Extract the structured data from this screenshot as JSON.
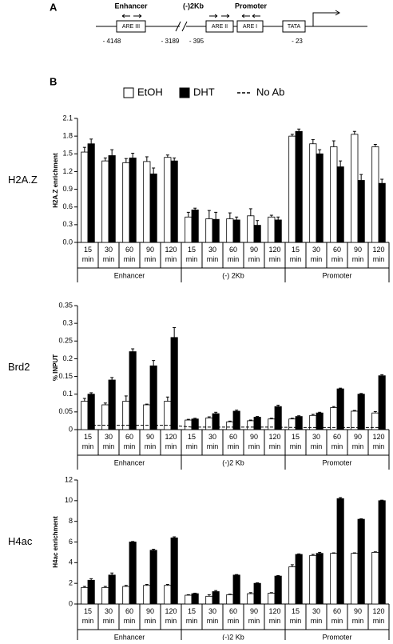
{
  "panel_a": {
    "label": "A",
    "regions": [
      "Enhancer",
      "(-)2Kb",
      "Promoter"
    ],
    "boxes": [
      "ARE III",
      "ARE II",
      "ARE I",
      "TATA"
    ],
    "positions": [
      "- 4148",
      "- 3189",
      "- 395",
      "- 23"
    ]
  },
  "panel_b": {
    "label": "B"
  },
  "legend": [
    {
      "name": "EtOH",
      "color": "#ffffff"
    },
    {
      "name": "DHT",
      "color": "#000000"
    },
    {
      "name": "No Ab",
      "style": "dashed"
    }
  ],
  "chart_data": [
    {
      "type": "bar",
      "row_label": "H2A.Z",
      "ylabel": "H2A.Z enrichment",
      "categories": [
        "15 min",
        "30 min",
        "60 min",
        "90 min",
        "120 min",
        "15 min",
        "30 min",
        "60 min",
        "90 min",
        "120 min",
        "15 min",
        "30 min",
        "60 min",
        "90 min",
        "120 min"
      ],
      "groups": [
        "Enhancer",
        "(-) 2Kb",
        "Promoter"
      ],
      "ylim": [
        0,
        2.1
      ],
      "yticks": [
        {
          "value": 0,
          "label": "0.0"
        },
        0.3,
        0.6,
        0.9,
        1.2,
        1.5,
        1.8,
        2.1
      ],
      "series": [
        {
          "color": "#ffffff",
          "values": [
            1.53,
            1.38,
            1.35,
            1.37,
            1.44,
            0.43,
            0.4,
            0.4,
            0.45,
            0.43,
            1.8,
            1.67,
            1.62,
            1.83,
            1.62
          ],
          "errors": [
            0.08,
            0.05,
            0.07,
            0.08,
            0.04,
            0.08,
            0.14,
            0.1,
            0.12,
            0.03,
            0.03,
            0.07,
            0.1,
            0.05,
            0.04
          ]
        },
        {
          "color": "#000000",
          "values": [
            1.67,
            1.47,
            1.43,
            1.16,
            1.38,
            0.55,
            0.39,
            0.38,
            0.29,
            0.38,
            1.88,
            1.5,
            1.28,
            1.05,
            1.0
          ],
          "errors": [
            0.08,
            0.1,
            0.08,
            0.1,
            0.05,
            0.03,
            0.12,
            0.05,
            0.08,
            0.05,
            0.04,
            0.07,
            0.1,
            0.1,
            0.07
          ]
        }
      ]
    },
    {
      "type": "bar",
      "row_label": "Brd2",
      "ylabel": "% INPUT",
      "categories": [
        "15 min",
        "30 min",
        "60 min",
        "90 min",
        "120 min",
        "15 min",
        "30 min",
        "60 min",
        "90 min",
        "120 min",
        "15 min",
        "30 min",
        "60 min",
        "90 min",
        "120 min"
      ],
      "groups": [
        "Enhancer",
        "(-)2 Kb",
        "Promoter"
      ],
      "ylim": [
        0,
        0.35
      ],
      "yticks": [
        0,
        0.05,
        0.1,
        0.15,
        0.2,
        0.25,
        0.3,
        0.35
      ],
      "series": [
        {
          "color": "#ffffff",
          "values": [
            0.08,
            0.07,
            0.08,
            0.07,
            0.08,
            0.027,
            0.033,
            0.022,
            0.025,
            0.03,
            0.03,
            0.04,
            0.062,
            0.052,
            0.047
          ],
          "errors": [
            0.008,
            0.005,
            0.015,
            0.002,
            0.012,
            0.002,
            0.003,
            0.002,
            0.002,
            0.002,
            0.002,
            0.003,
            0.003,
            0.002,
            0.004
          ]
        },
        {
          "color": "#000000",
          "values": [
            0.1,
            0.14,
            0.22,
            0.18,
            0.26,
            0.03,
            0.045,
            0.052,
            0.035,
            0.065,
            0.037,
            0.047,
            0.115,
            0.1,
            0.152
          ],
          "errors": [
            0.004,
            0.007,
            0.008,
            0.015,
            0.028,
            0.002,
            0.004,
            0.003,
            0.002,
            0.004,
            0.002,
            0.002,
            0.002,
            0.002,
            0.003
          ]
        }
      ],
      "no_ab": [
        0.012,
        0.012,
        0.012,
        0.012,
        0.012,
        0.007,
        0.007,
        0.007,
        0.007,
        0.007,
        0.006,
        0.006,
        0.006,
        0.006,
        0.006
      ]
    },
    {
      "type": "bar",
      "row_label": "H4ac",
      "ylabel": "H4ac enrichment",
      "categories": [
        "15 min",
        "30 min",
        "60 min",
        "90 min",
        "120 min",
        "15 min",
        "30 min",
        "60 min",
        "90 min",
        "120 min",
        "15 min",
        "30 min",
        "60 min",
        "90 min",
        "120 min"
      ],
      "groups": [
        "Enhancer",
        "(-)2 Kb",
        "Promoter"
      ],
      "ylim": [
        0,
        12
      ],
      "yticks": [
        0,
        2,
        4,
        6,
        8,
        10,
        12
      ],
      "series": [
        {
          "color": "#ffffff",
          "values": [
            1.6,
            1.6,
            1.7,
            1.8,
            1.8,
            0.85,
            0.75,
            0.9,
            1.0,
            1.05,
            3.6,
            4.7,
            4.9,
            4.9,
            5.0
          ],
          "errors": [
            0.1,
            0.1,
            0.1,
            0.1,
            0.1,
            0.05,
            0.15,
            0.05,
            0.1,
            0.05,
            0.2,
            0.1,
            0.05,
            0.05,
            0.05
          ]
        },
        {
          "color": "#000000",
          "values": [
            2.3,
            2.8,
            6.0,
            5.2,
            6.4,
            1.0,
            1.2,
            2.8,
            2.0,
            2.7,
            4.8,
            4.9,
            10.2,
            8.2,
            10.0
          ],
          "errors": [
            0.15,
            0.2,
            0.05,
            0.1,
            0.1,
            0.05,
            0.1,
            0.05,
            0.05,
            0.05,
            0.05,
            0.1,
            0.1,
            0.05,
            0.05
          ]
        }
      ]
    }
  ]
}
